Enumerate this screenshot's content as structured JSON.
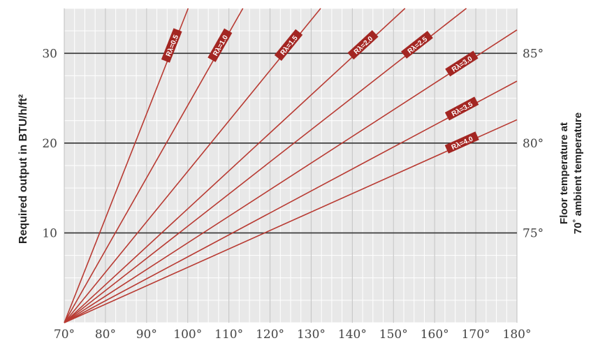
{
  "chart_data": {
    "type": "line",
    "ylabel": "Required output in BTU/h/ft²",
    "y2label_line1": "Floor temperature at",
    "y2label_line2": "70˚ ambient temperature",
    "xlim": [
      70,
      180
    ],
    "ylim": [
      0,
      35
    ],
    "x_ticks": [
      70,
      80,
      90,
      100,
      110,
      120,
      130,
      140,
      150,
      160,
      170,
      180
    ],
    "x_tick_labels": [
      "70°",
      "80°",
      "90°",
      "100°",
      "110°",
      "120°",
      "130°",
      "140°",
      "150°",
      "160°",
      "170°",
      "180°"
    ],
    "y_ticks": [
      10,
      20,
      30
    ],
    "y_tick_labels": [
      "10",
      "20",
      "30"
    ],
    "y2_ticks": [
      10,
      20,
      30
    ],
    "y2_tick_labels": [
      "75°",
      "80°",
      "85°"
    ],
    "grid": true,
    "colors": {
      "line": "#b83a32",
      "tag": "#a32622",
      "plot_bg": "#e8e8e8",
      "minor_grid": "#ffffff",
      "major_grid": "#333333"
    },
    "series": [
      {
        "name": "Rλ=0.5",
        "x": [
          70,
          100.1
        ],
        "y": [
          0,
          35
        ]
      },
      {
        "name": "Rλ=1.0",
        "x": [
          70,
          113.4
        ],
        "y": [
          0,
          35
        ]
      },
      {
        "name": "Rλ=1.5",
        "x": [
          70,
          132.3
        ],
        "y": [
          0,
          35
        ]
      },
      {
        "name": "Rλ=2.0",
        "x": [
          70,
          152.8
        ],
        "y": [
          0,
          35
        ]
      },
      {
        "name": "Rλ=2.5",
        "x": [
          70,
          167.7
        ],
        "y": [
          0,
          35
        ]
      },
      {
        "name": "Rλ=3.0",
        "x": [
          70,
          180
        ],
        "y": [
          0,
          32.6
        ]
      },
      {
        "name": "Rλ=3.5",
        "x": [
          70,
          180
        ],
        "y": [
          0,
          26.9
        ]
      },
      {
        "name": "Rλ=4.0",
        "x": [
          70,
          180
        ],
        "y": [
          0,
          22.6
        ]
      }
    ]
  }
}
